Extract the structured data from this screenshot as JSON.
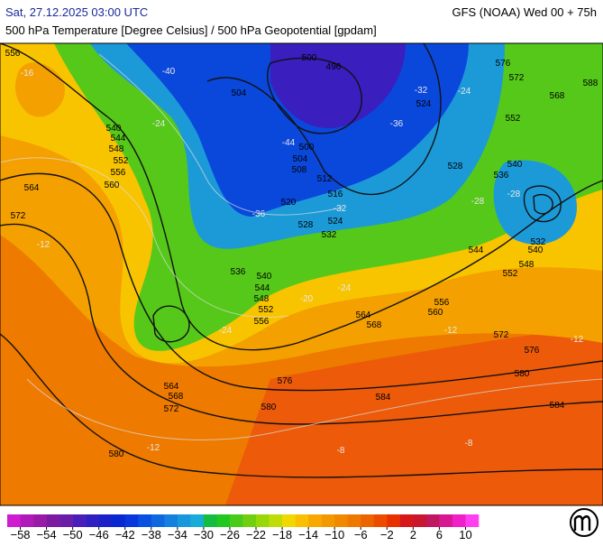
{
  "header": {
    "left": "Sat, 27.12.2025 03:00 UTC",
    "right": "GFS (NOAA) Wed 00 + 75h",
    "subtitle": "500 hPa Temperature [Degree Celsius] / 500 hPa Geopotential [gpdam]"
  },
  "map": {
    "contour_labels": [
      "556",
      "540",
      "544",
      "548",
      "552",
      "556",
      "560",
      "564",
      "572",
      "564",
      "568",
      "572",
      "580",
      "536",
      "540",
      "544",
      "548",
      "552",
      "556",
      "564",
      "568",
      "560",
      "556",
      "576",
      "580",
      "584",
      "580",
      "576",
      "572",
      "584",
      "532",
      "540",
      "548",
      "552",
      "544",
      "540",
      "536",
      "528",
      "552",
      "572",
      "576",
      "568",
      "588",
      "524",
      "520",
      "528",
      "524",
      "532",
      "516",
      "512",
      "508",
      "504",
      "500",
      "504",
      "496",
      "500"
    ],
    "temperature_labels": [
      "-40",
      "-36",
      "-32",
      "-44",
      "-36",
      "-32",
      "-28",
      "-24",
      "-24",
      "-28",
      "-24",
      "-20",
      "-16",
      "-12",
      "-12",
      "-12",
      "-8",
      "-12",
      "-8",
      "-24"
    ]
  },
  "legend": {
    "labels": [
      "−58",
      "−54",
      "−50",
      "−46",
      "−42",
      "−38",
      "−34",
      "−30",
      "−26",
      "−22",
      "−18",
      "−14",
      "−10",
      "−6",
      "−2",
      "2",
      "6",
      "10"
    ],
    "colors": [
      "#d01cd0",
      "#b01ab8",
      "#9a1aa8",
      "#7c1aa0",
      "#6a1ea8",
      "#4a1eb8",
      "#3020c0",
      "#1a22c8",
      "#0a28d2",
      "#0838dc",
      "#0a50e0",
      "#1068e0",
      "#1480e0",
      "#1898dc",
      "#18acd8",
      "#14bc40",
      "#20c820",
      "#48cc18",
      "#70d010",
      "#98d808",
      "#c0dc08",
      "#f0d800",
      "#f8c000",
      "#f8a800",
      "#f49800",
      "#f08800",
      "#ee7800",
      "#ec6400",
      "#ec4c00",
      "#e83000",
      "#d81818",
      "#c81830",
      "#c01860",
      "#d81890",
      "#f020c8",
      "#ff40f0"
    ]
  }
}
